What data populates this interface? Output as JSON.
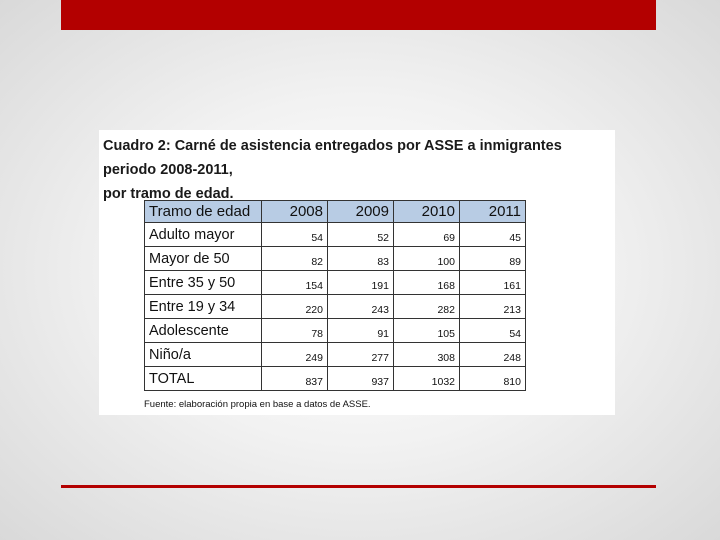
{
  "slide": {
    "colors": {
      "accent": "#b30000",
      "table_header_bg": "#b8cce4"
    }
  },
  "figure": {
    "caption_line1": "Cuadro 2: Carné de asistencia entregados por ASSE a inmigrantes periodo 2008-2011,",
    "caption_line2": "por tramo de edad.",
    "table": {
      "header_label": "Tramo de edad",
      "years": [
        "2008",
        "2009",
        "2010",
        "2011"
      ],
      "rows": [
        {
          "label": "Adulto mayor",
          "values": [
            "54",
            "52",
            "69",
            "45"
          ]
        },
        {
          "label": "Mayor de 50",
          "values": [
            "82",
            "83",
            "100",
            "89"
          ]
        },
        {
          "label": "Entre 35 y 50",
          "values": [
            "154",
            "191",
            "168",
            "161"
          ]
        },
        {
          "label": "Entre 19 y 34",
          "values": [
            "220",
            "243",
            "282",
            "213"
          ]
        },
        {
          "label": "Adolescente",
          "values": [
            "78",
            "91",
            "105",
            "54"
          ]
        },
        {
          "label": "Niño/a",
          "values": [
            "249",
            "277",
            "308",
            "248"
          ]
        },
        {
          "label": "TOTAL",
          "values": [
            "837",
            "937",
            "1032",
            "810"
          ]
        }
      ]
    },
    "source": "Fuente: elaboración propia en base a datos de ASSE."
  }
}
